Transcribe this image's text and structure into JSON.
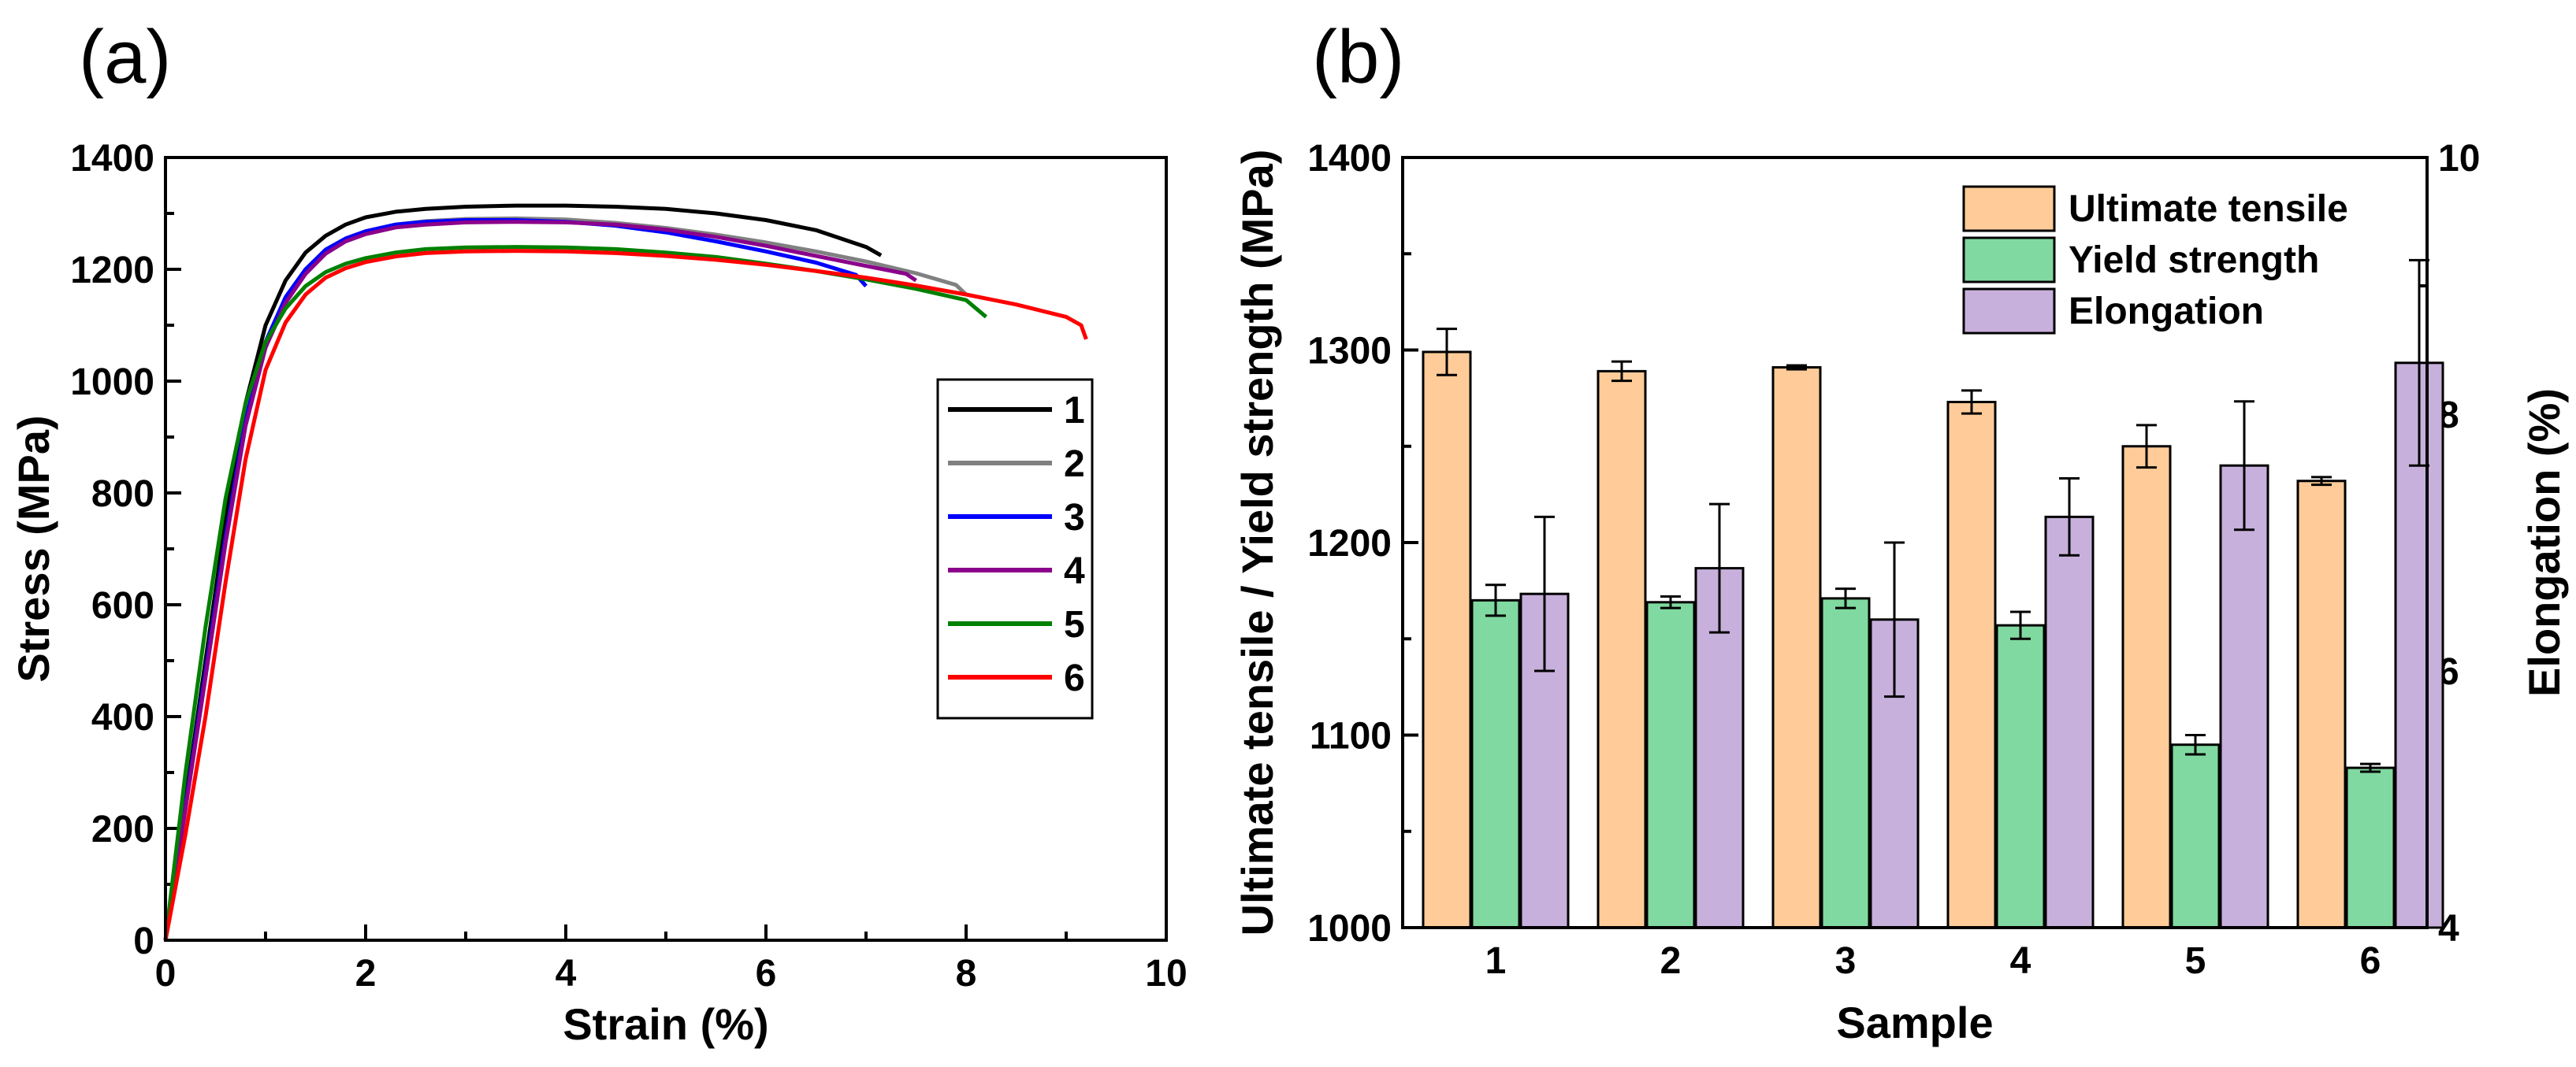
{
  "chart_data": [
    {
      "panel_label": "(a)",
      "type": "line",
      "title": "",
      "xlabel": "Strain (%)",
      "ylabel": "Stress (MPa)",
      "xlim": [
        0,
        10
      ],
      "ylim": [
        0,
        1400
      ],
      "xticks": [
        0,
        2,
        4,
        6,
        8,
        10
      ],
      "yticks": [
        0,
        200,
        400,
        600,
        800,
        1000,
        1200,
        1400
      ],
      "legend_position": "center-right",
      "series": [
        {
          "name": "1",
          "color": "#000000",
          "x": [
            0,
            0.2,
            0.4,
            0.6,
            0.8,
            1.0,
            1.2,
            1.4,
            1.6,
            1.8,
            2.0,
            2.3,
            2.6,
            3.0,
            3.5,
            4.0,
            4.5,
            5.0,
            5.5,
            6.0,
            6.5,
            7.0,
            7.15
          ],
          "y": [
            0,
            250,
            500,
            750,
            960,
            1100,
            1180,
            1230,
            1260,
            1280,
            1293,
            1303,
            1308,
            1312,
            1314,
            1314,
            1312,
            1308,
            1300,
            1288,
            1270,
            1240,
            1225
          ]
        },
        {
          "name": "2",
          "color": "#808080",
          "x": [
            0,
            0.2,
            0.4,
            0.6,
            0.8,
            1.0,
            1.2,
            1.4,
            1.6,
            1.8,
            2.0,
            2.3,
            2.6,
            3.0,
            3.5,
            4.0,
            4.5,
            5.0,
            5.5,
            6.0,
            6.5,
            7.0,
            7.5,
            7.9,
            8.0
          ],
          "y": [
            0,
            240,
            480,
            720,
            930,
            1070,
            1150,
            1200,
            1235,
            1255,
            1268,
            1280,
            1286,
            1290,
            1291,
            1289,
            1283,
            1274,
            1262,
            1248,
            1232,
            1214,
            1193,
            1172,
            1155
          ]
        },
        {
          "name": "3",
          "color": "#0000ff",
          "x": [
            0,
            0.2,
            0.4,
            0.6,
            0.8,
            1.0,
            1.2,
            1.4,
            1.6,
            1.8,
            2.0,
            2.3,
            2.6,
            3.0,
            3.5,
            4.0,
            4.5,
            5.0,
            5.5,
            6.0,
            6.5,
            6.9,
            7.0
          ],
          "y": [
            0,
            240,
            480,
            720,
            930,
            1070,
            1150,
            1200,
            1235,
            1255,
            1268,
            1280,
            1285,
            1288,
            1288,
            1285,
            1278,
            1266,
            1250,
            1232,
            1212,
            1190,
            1170
          ]
        },
        {
          "name": "4",
          "color": "#8b008b",
          "x": [
            0,
            0.2,
            0.4,
            0.6,
            0.8,
            1.0,
            1.2,
            1.4,
            1.6,
            1.8,
            2.0,
            2.3,
            2.6,
            3.0,
            3.5,
            4.0,
            4.5,
            5.0,
            5.5,
            6.0,
            6.5,
            7.0,
            7.4,
            7.5
          ],
          "y": [
            0,
            235,
            470,
            710,
            920,
            1060,
            1140,
            1192,
            1228,
            1250,
            1263,
            1275,
            1280,
            1284,
            1285,
            1284,
            1280,
            1271,
            1258,
            1242,
            1224,
            1206,
            1192,
            1180
          ]
        },
        {
          "name": "5",
          "color": "#008000",
          "x": [
            0,
            0.2,
            0.4,
            0.6,
            0.8,
            1.0,
            1.2,
            1.4,
            1.6,
            1.8,
            2.0,
            2.3,
            2.6,
            3.0,
            3.5,
            4.0,
            4.5,
            5.0,
            5.5,
            6.0,
            6.5,
            7.0,
            7.5,
            8.0,
            8.2
          ],
          "y": [
            0,
            300,
            560,
            790,
            960,
            1070,
            1130,
            1170,
            1195,
            1210,
            1220,
            1230,
            1236,
            1239,
            1240,
            1239,
            1236,
            1230,
            1222,
            1210,
            1197,
            1182,
            1165,
            1145,
            1115
          ]
        },
        {
          "name": "6",
          "color": "#ff0000",
          "x": [
            0,
            0.2,
            0.4,
            0.6,
            0.8,
            1.0,
            1.2,
            1.4,
            1.6,
            1.8,
            2.0,
            2.3,
            2.6,
            3.0,
            3.5,
            4.0,
            4.5,
            5.0,
            5.5,
            6.0,
            6.5,
            7.0,
            7.5,
            8.0,
            8.5,
            9.0,
            9.15,
            9.2
          ],
          "y": [
            0,
            190,
            400,
            640,
            860,
            1020,
            1105,
            1155,
            1185,
            1202,
            1213,
            1223,
            1229,
            1232,
            1233,
            1232,
            1229,
            1224,
            1217,
            1208,
            1197,
            1185,
            1171,
            1155,
            1137,
            1115,
            1100,
            1075
          ]
        }
      ]
    },
    {
      "panel_label": "(b)",
      "type": "bar",
      "title": "",
      "xlabel": "Sample",
      "ylabel": "Ultimate tensile / Yield strength (MPa)",
      "y2label": "Elongation (%)",
      "categories": [
        "1",
        "2",
        "3",
        "4",
        "5",
        "6"
      ],
      "ylim": [
        1000,
        1400
      ],
      "yticks": [
        1000,
        1100,
        1200,
        1300,
        1400
      ],
      "y2lim": [
        4,
        10
      ],
      "y2ticks": [
        4,
        6,
        8,
        10
      ],
      "legend_position": "top-right",
      "series": [
        {
          "name": "Ultimate tensile",
          "axis": "left",
          "color": "#ffcc99",
          "values": [
            1299,
            1289,
            1291,
            1273,
            1250,
            1232
          ],
          "errors": [
            12,
            5,
            1,
            6,
            11,
            2
          ]
        },
        {
          "name": "Yield strength",
          "axis": "left",
          "color": "#80d9a0",
          "values": [
            1170,
            1169,
            1171,
            1157,
            1095,
            1083
          ],
          "errors": [
            8,
            3,
            5,
            7,
            5,
            2
          ]
        },
        {
          "name": "Elongation",
          "axis": "right",
          "color": "#c8b0dc",
          "values": [
            6.6,
            6.8,
            6.4,
            7.2,
            7.6,
            8.4
          ],
          "errors": [
            0.6,
            0.5,
            0.6,
            0.3,
            0.5,
            0.8
          ]
        }
      ]
    }
  ]
}
